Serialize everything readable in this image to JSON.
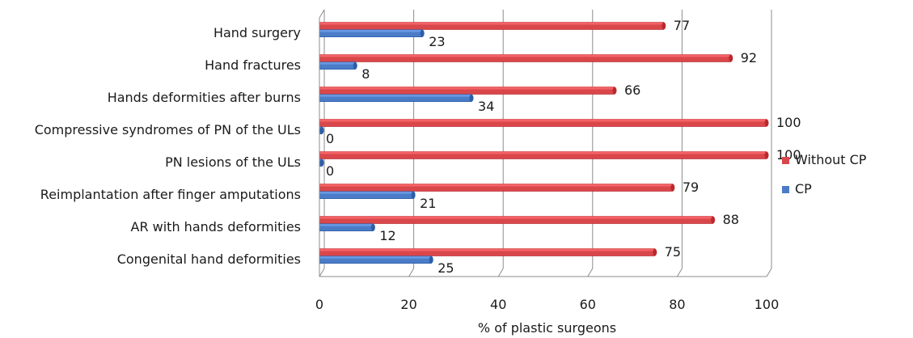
{
  "chart_data": {
    "type": "bar",
    "orientation": "horizontal",
    "categories": [
      "Hand surgery",
      "Hand fractures",
      "Hands deformities after burns",
      "Compressive syndromes of PN of the ULs",
      "PN lesions of the ULs",
      "Reimplantation after finger amputations",
      "AR with hands deformities",
      "Congenital hand deformities"
    ],
    "series": [
      {
        "name": "Without CP",
        "color": "#d9474b",
        "values": [
          77,
          92,
          66,
          100,
          100,
          79,
          88,
          75
        ]
      },
      {
        "name": "CP",
        "color": "#4a7cc7",
        "values": [
          23,
          8,
          34,
          0,
          0,
          21,
          12,
          25
        ]
      }
    ],
    "xlabel": "% of plastic surgeons",
    "xlim": [
      0,
      100
    ],
    "xticks": [
      "0",
      "20",
      "40",
      "60",
      "80",
      "100"
    ],
    "grid": true,
    "legend_position": "right"
  }
}
